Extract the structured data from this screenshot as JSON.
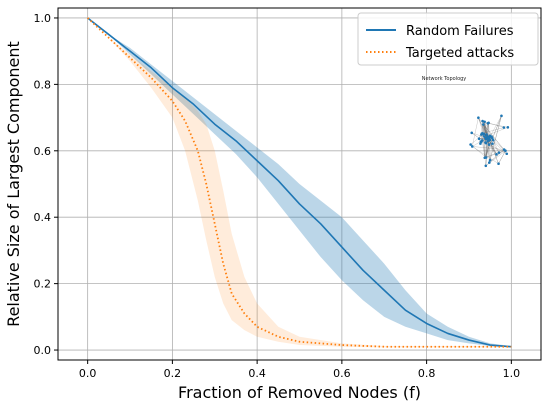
{
  "chart_data": {
    "type": "line",
    "xlabel": "Fraction of Removed Nodes (f)",
    "ylabel": "Relative Size of Largest Component",
    "xlim": [
      -0.07,
      1.07
    ],
    "ylim": [
      -0.03,
      1.03
    ],
    "x_ticks": [
      "0.0",
      "0.2",
      "0.4",
      "0.6",
      "0.8",
      "1.0"
    ],
    "y_ticks": [
      "0.0",
      "0.2",
      "0.4",
      "0.6",
      "0.8",
      "1.0"
    ],
    "grid": true,
    "legend_position": "top-right",
    "series": [
      {
        "name": "Random Failures",
        "color": "#1f77b4",
        "style": "solid",
        "x": [
          0.0,
          0.05,
          0.1,
          0.15,
          0.2,
          0.25,
          0.3,
          0.35,
          0.4,
          0.45,
          0.5,
          0.55,
          0.6,
          0.65,
          0.7,
          0.75,
          0.8,
          0.85,
          0.9,
          0.95,
          1.0
        ],
        "y": [
          1.0,
          0.95,
          0.9,
          0.85,
          0.79,
          0.74,
          0.68,
          0.63,
          0.57,
          0.51,
          0.44,
          0.38,
          0.31,
          0.24,
          0.18,
          0.12,
          0.08,
          0.05,
          0.03,
          0.015,
          0.01
        ],
        "band_lower": [
          1.0,
          0.95,
          0.89,
          0.83,
          0.77,
          0.71,
          0.65,
          0.59,
          0.52,
          0.44,
          0.36,
          0.28,
          0.21,
          0.15,
          0.1,
          0.07,
          0.05,
          0.03,
          0.02,
          0.012,
          0.008
        ],
        "band_upper": [
          1.0,
          0.95,
          0.91,
          0.86,
          0.81,
          0.76,
          0.71,
          0.66,
          0.61,
          0.56,
          0.5,
          0.45,
          0.4,
          0.33,
          0.26,
          0.18,
          0.11,
          0.07,
          0.04,
          0.02,
          0.012
        ]
      },
      {
        "name": "Targeted attacks",
        "color": "#ff7f0e",
        "style": "dotted",
        "x": [
          0.0,
          0.05,
          0.1,
          0.15,
          0.2,
          0.23,
          0.26,
          0.28,
          0.3,
          0.32,
          0.34,
          0.37,
          0.4,
          0.45,
          0.5,
          0.6,
          0.7,
          0.8,
          0.9,
          1.0
        ],
        "y": [
          1.0,
          0.94,
          0.88,
          0.82,
          0.75,
          0.69,
          0.6,
          0.5,
          0.38,
          0.26,
          0.17,
          0.11,
          0.07,
          0.04,
          0.025,
          0.015,
          0.01,
          0.01,
          0.01,
          0.01
        ],
        "band_lower": [
          1.0,
          0.94,
          0.87,
          0.79,
          0.7,
          0.6,
          0.45,
          0.33,
          0.22,
          0.14,
          0.09,
          0.06,
          0.04,
          0.025,
          0.015,
          0.01,
          0.008,
          0.008,
          0.008,
          0.008
        ],
        "band_upper": [
          1.0,
          0.94,
          0.89,
          0.84,
          0.79,
          0.76,
          0.72,
          0.68,
          0.6,
          0.48,
          0.35,
          0.22,
          0.14,
          0.07,
          0.04,
          0.02,
          0.012,
          0.012,
          0.012,
          0.012
        ]
      }
    ],
    "inset": {
      "title": "Network Topology",
      "node_color": "#1f77b4"
    }
  }
}
